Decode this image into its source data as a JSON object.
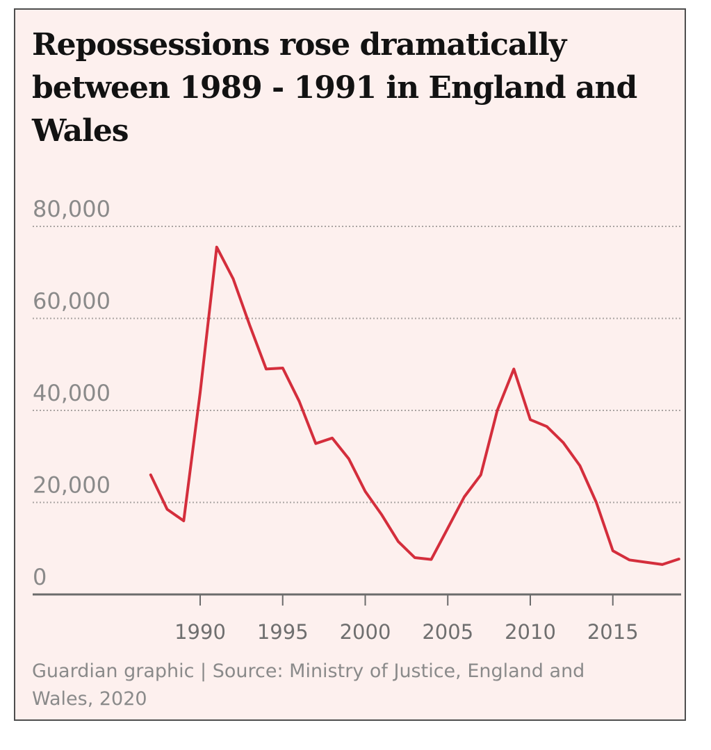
{
  "chart_data": {
    "type": "line",
    "title": "Repossessions rose dramatically between 1989 - 1991 in England and Wales",
    "source": "Guardian graphic | Source: Ministry of Justice, England and Wales, 2020",
    "xlabel": "",
    "ylabel": "",
    "xlim": [
      1980,
      2019
    ],
    "ylim": [
      0,
      80000
    ],
    "x_ticks": [
      1990,
      1995,
      2000,
      2005,
      2010,
      2015
    ],
    "y_ticks": [
      {
        "value": 80000,
        "label": "80,000"
      },
      {
        "value": 60000,
        "label": "60,000"
      },
      {
        "value": 40000,
        "label": "40,000"
      },
      {
        "value": 20000,
        "label": "20,000"
      },
      {
        "value": 0,
        "label": "0"
      }
    ],
    "grid": true,
    "line_color": "#d42e3c",
    "series": [
      {
        "x": [
          1987,
          1988,
          1989,
          1990,
          1991,
          1992,
          1993,
          1994,
          1995,
          1996,
          1997,
          1998,
          1999,
          2000,
          2001,
          2002,
          2003,
          2004,
          2005,
          2006,
          2007,
          2008,
          2009,
          2010,
          2011,
          2012,
          2013,
          2014,
          2015,
          2016,
          2017,
          2018,
          2019
        ],
        "values": [
          26000,
          18500,
          16000,
          43900,
          75500,
          68600,
          58500,
          49000,
          49200,
          42000,
          32800,
          34000,
          29500,
          22400,
          17300,
          11500,
          8000,
          7600,
          14400,
          21200,
          26000,
          40000,
          49000,
          38000,
          36500,
          33000,
          28000,
          20000,
          9500,
          7500,
          7000,
          6500,
          7700
        ]
      }
    ]
  }
}
